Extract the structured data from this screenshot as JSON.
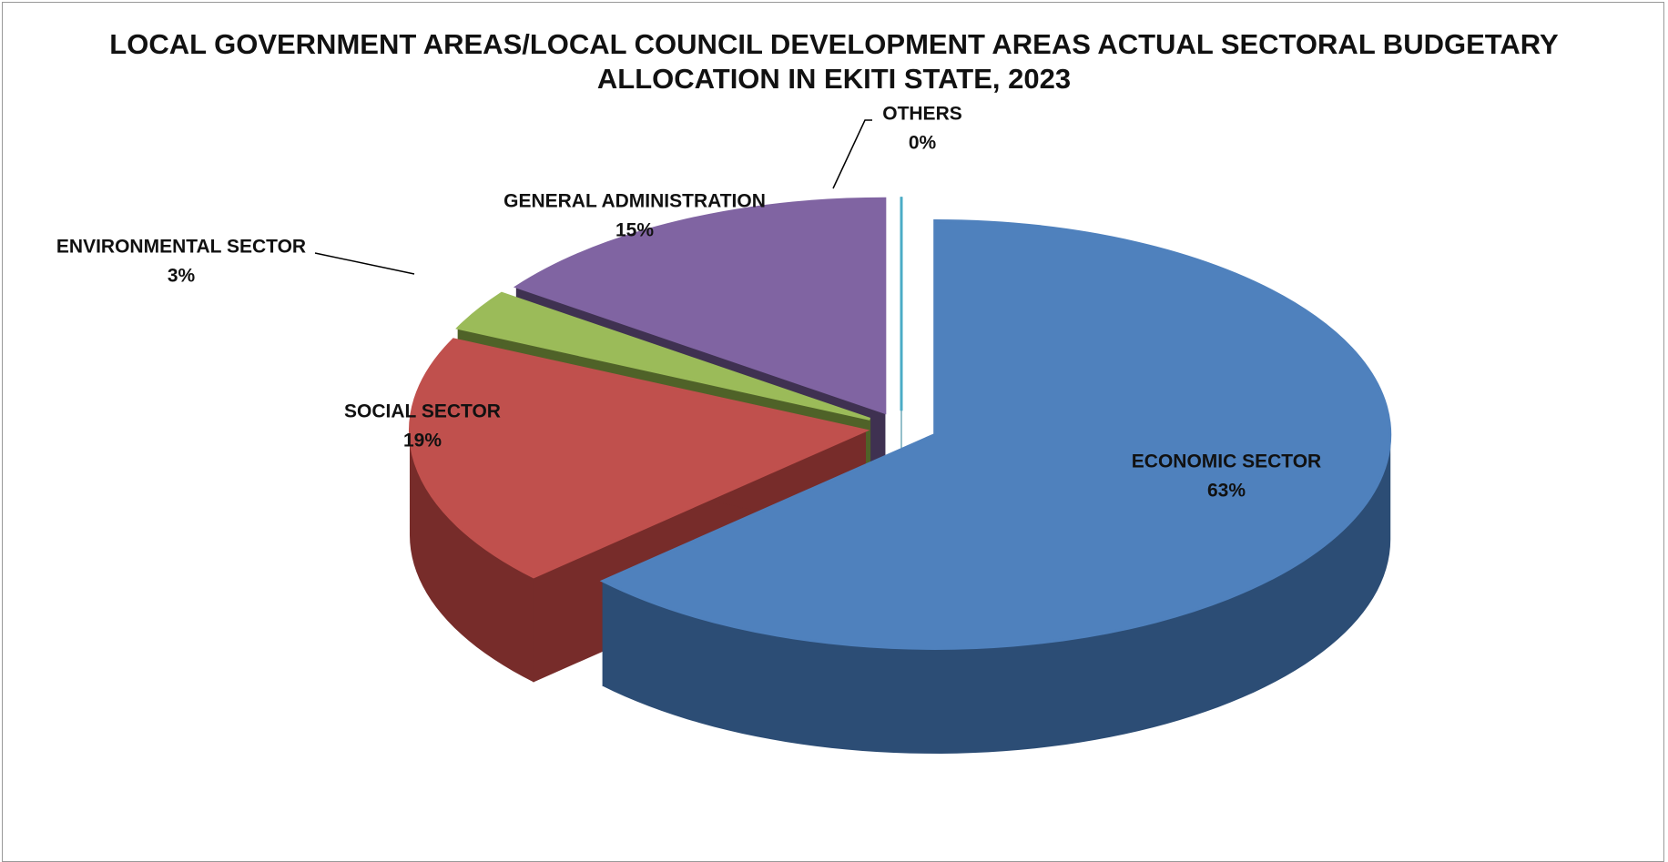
{
  "chart_data": {
    "type": "pie3d",
    "title": "LOCAL GOVERNMENT AREAS/LOCAL COUNCIL DEVELOPMENT AREAS ACTUAL SECTORAL BUDGETARY ALLOCATION IN EKITI STATE,  2023",
    "categories": [
      "ECONOMIC SECTOR",
      "SOCIAL SECTOR",
      "ENVIRONMENTAL SECTOR",
      "GENERAL ADMINISTRATION",
      "OTHERS"
    ],
    "values": [
      63,
      19,
      3,
      15,
      0
    ],
    "value_labels": [
      "63%",
      "19%",
      "3%",
      "15%",
      "0%"
    ],
    "colors": [
      "#4f81bd",
      "#c0504d",
      "#9bbb59",
      "#8064a2",
      "#4bacc6"
    ],
    "side_colors": [
      "#2c4d75",
      "#772c2a",
      "#4f6228",
      "#3f3151",
      "#2a7f96"
    ]
  }
}
